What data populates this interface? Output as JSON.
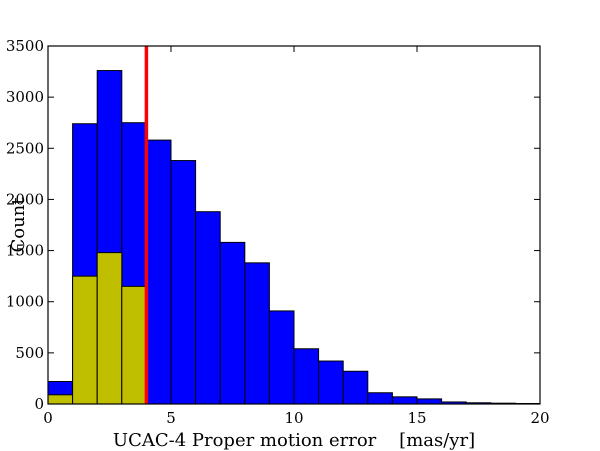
{
  "chart_data": {
    "type": "bar",
    "xlabel": "UCAC-4 Proper motion error    [mas/yr]",
    "ylabel": "Count",
    "xlim": [
      0,
      20
    ],
    "ylim": [
      0,
      3500
    ],
    "xticks": [
      0,
      5,
      10,
      15,
      20
    ],
    "yticks": [
      0,
      500,
      1000,
      1500,
      2000,
      2500,
      3000,
      3500
    ],
    "grid": false,
    "legend": "none",
    "bin_edges": [
      0,
      1,
      2,
      3,
      4,
      5,
      6,
      7,
      8,
      9,
      10,
      11,
      12,
      13,
      14,
      15,
      16,
      17,
      18,
      19,
      20
    ],
    "series": [
      {
        "color": "#0000ff",
        "values": [
          220,
          2740,
          3260,
          2750,
          2580,
          2380,
          1880,
          1580,
          1380,
          910,
          540,
          420,
          320,
          110,
          70,
          50,
          20,
          12,
          8,
          5
        ]
      },
      {
        "color": "#bfbf00",
        "values": [
          90,
          1250,
          1480,
          1150,
          0,
          0,
          0,
          0,
          0,
          0,
          0,
          0,
          0,
          0,
          0,
          0,
          0,
          0,
          0,
          0
        ]
      }
    ],
    "vline": {
      "x": 4.0,
      "color": "#ff0000"
    }
  }
}
